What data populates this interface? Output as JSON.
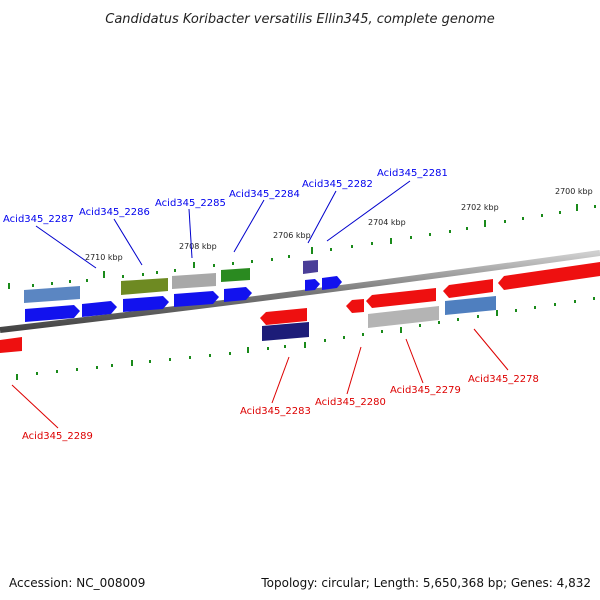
{
  "title": "Candidatus Koribacter versatilis Ellin345, complete genome",
  "scale_labels": [
    "2710 kbp",
    "2708 kbp",
    "2706 kbp",
    "2704 kbp",
    "2702 kbp",
    "2700 kbp"
  ],
  "genes_forward": [
    {
      "label": "Acid345_2287",
      "color": "#0000ee"
    },
    {
      "label": "Acid345_2286",
      "color": "#0000ee"
    },
    {
      "label": "Acid345_2285",
      "color": "#0000ee"
    },
    {
      "label": "Acid345_2284",
      "color": "#0000ee"
    },
    {
      "label": "Acid345_2282",
      "color": "#0000ee"
    },
    {
      "label": "Acid345_2281",
      "color": "#0000ee"
    }
  ],
  "genes_reverse": [
    {
      "label": "Acid345_2289",
      "color": "#dd0000"
    },
    {
      "label": "Acid345_2283",
      "color": "#dd0000"
    },
    {
      "label": "Acid345_2280",
      "color": "#dd0000"
    },
    {
      "label": "Acid345_2279",
      "color": "#dd0000"
    },
    {
      "label": "Acid345_2278",
      "color": "#dd0000"
    }
  ],
  "footer": {
    "accession": "Accession: NC_008009",
    "summary": "Topology: circular; Length: 5,650,368 bp; Genes: 4,832"
  }
}
